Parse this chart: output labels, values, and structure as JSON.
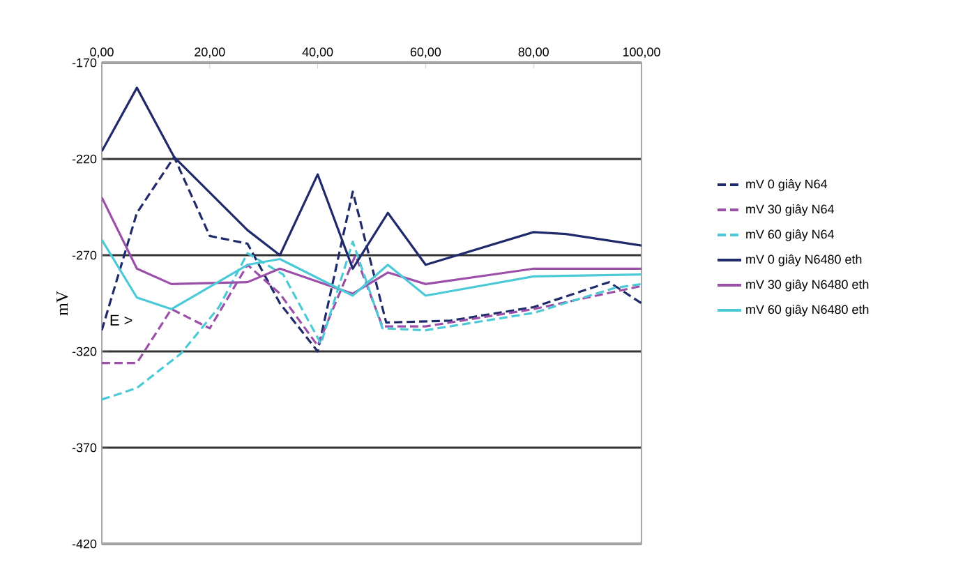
{
  "chart_data": {
    "type": "line",
    "ylabel": "mV",
    "xlim": [
      0,
      100
    ],
    "xticks": [
      {
        "value": 0,
        "label": "0,00"
      },
      {
        "value": 20,
        "label": "20,00"
      },
      {
        "value": 40,
        "label": "40,00"
      },
      {
        "value": 60,
        "label": "60,00"
      },
      {
        "value": 80,
        "label": "80,00"
      },
      {
        "value": 100,
        "label": "100,00"
      }
    ],
    "ylim": [
      -420,
      -170
    ],
    "yticks": [
      -420,
      -370,
      -320,
      -270,
      -220,
      -170
    ],
    "grid": "y",
    "legend": "right",
    "marker": "none",
    "annotations": [
      "E >"
    ],
    "series": [
      {
        "name": "mV 0 giây N64",
        "color": "#1f2a6b",
        "line_style": "dashed",
        "x": [
          0,
          6.5,
          13.4,
          20,
          27,
          33,
          40,
          46.5,
          52.7,
          64.6,
          80,
          94,
          100
        ],
        "values": [
          -309,
          -248,
          -219,
          -260,
          -264,
          -295,
          -320,
          -237,
          -305,
          -304,
          -297,
          -284,
          -295
        ]
      },
      {
        "name": "mV 30 giây N64",
        "color": "#9b4fa8",
        "line_style": "dashed",
        "x": [
          0,
          6.5,
          12.9,
          20,
          27,
          33,
          40,
          47,
          52,
          60,
          80,
          100
        ],
        "values": [
          -326,
          -326,
          -298,
          -308,
          -275,
          -290,
          -317,
          -270,
          -307,
          -307,
          -298,
          -286
        ]
      },
      {
        "name": "mV 60 giây N64",
        "color": "#4cc9d6",
        "line_style": "dashed",
        "x": [
          0,
          6.5,
          14.7,
          21.7,
          27,
          33.6,
          40.6,
          46.5,
          52,
          60,
          80,
          95,
          100
        ],
        "values": [
          -345,
          -339,
          -321,
          -297,
          -269,
          -280,
          -316,
          -263,
          -308,
          -309,
          -300,
          -287,
          -285
        ]
      },
      {
        "name": "mV 0 giây N6480 eth",
        "color": "#1f2a6b",
        "line_style": "solid",
        "x": [
          0,
          6.5,
          13.4,
          27,
          33,
          40,
          46.5,
          53,
          60,
          80,
          86,
          100
        ],
        "values": [
          -216,
          -183,
          -219,
          -257,
          -270,
          -228,
          -277,
          -248,
          -275,
          -258,
          -259,
          -265
        ]
      },
      {
        "name": "mV 30 giây N6480 eth",
        "color": "#9b4fa8",
        "line_style": "solid",
        "x": [
          0,
          6.5,
          12.9,
          27,
          33,
          46.5,
          53,
          60,
          80,
          100
        ],
        "values": [
          -240,
          -277,
          -285,
          -284,
          -277,
          -290,
          -279,
          -285,
          -277,
          -277
        ]
      },
      {
        "name": "mV 60 giây N6480 eth",
        "color": "#4cc9d6",
        "line_style": "solid",
        "x": [
          0,
          6.5,
          12.9,
          27,
          33,
          46.5,
          53,
          60,
          80,
          100
        ],
        "values": [
          -262,
          -292,
          -298,
          -275,
          -272,
          -291,
          -275,
          -291,
          -281,
          -280
        ]
      }
    ]
  }
}
